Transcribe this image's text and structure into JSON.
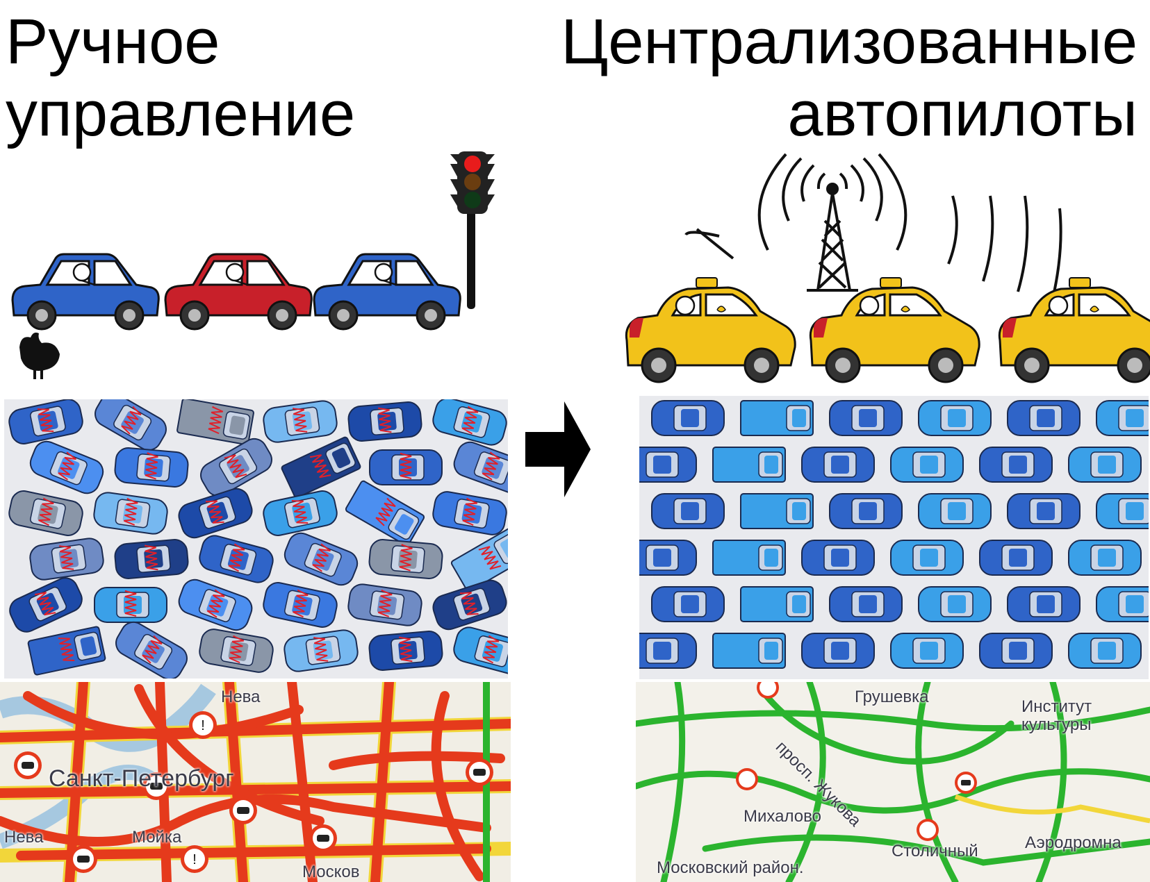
{
  "titles": {
    "left": {
      "line1": "Ручное",
      "line2": "управление"
    },
    "right": {
      "line1": "Централизованные",
      "line2": "автопилоты"
    }
  },
  "map_left": {
    "labels": [
      "Нева",
      "Санкт-Петербург",
      "Мойка",
      "Нева",
      "Москов"
    ]
  },
  "map_right": {
    "labels": [
      "Грушевка",
      "просп. Жукова",
      "Институт",
      "культуры",
      "Михалово",
      "Столичный",
      "Аэродромна",
      "Московский район."
    ]
  },
  "colors": {
    "car_blue": "#2f64c8",
    "car_red": "#c8202a",
    "taxi_yellow": "#f2c21a",
    "jam_red": "#e53a1c",
    "road_yellow": "#f2d63a",
    "road_green": "#2bb42e"
  }
}
